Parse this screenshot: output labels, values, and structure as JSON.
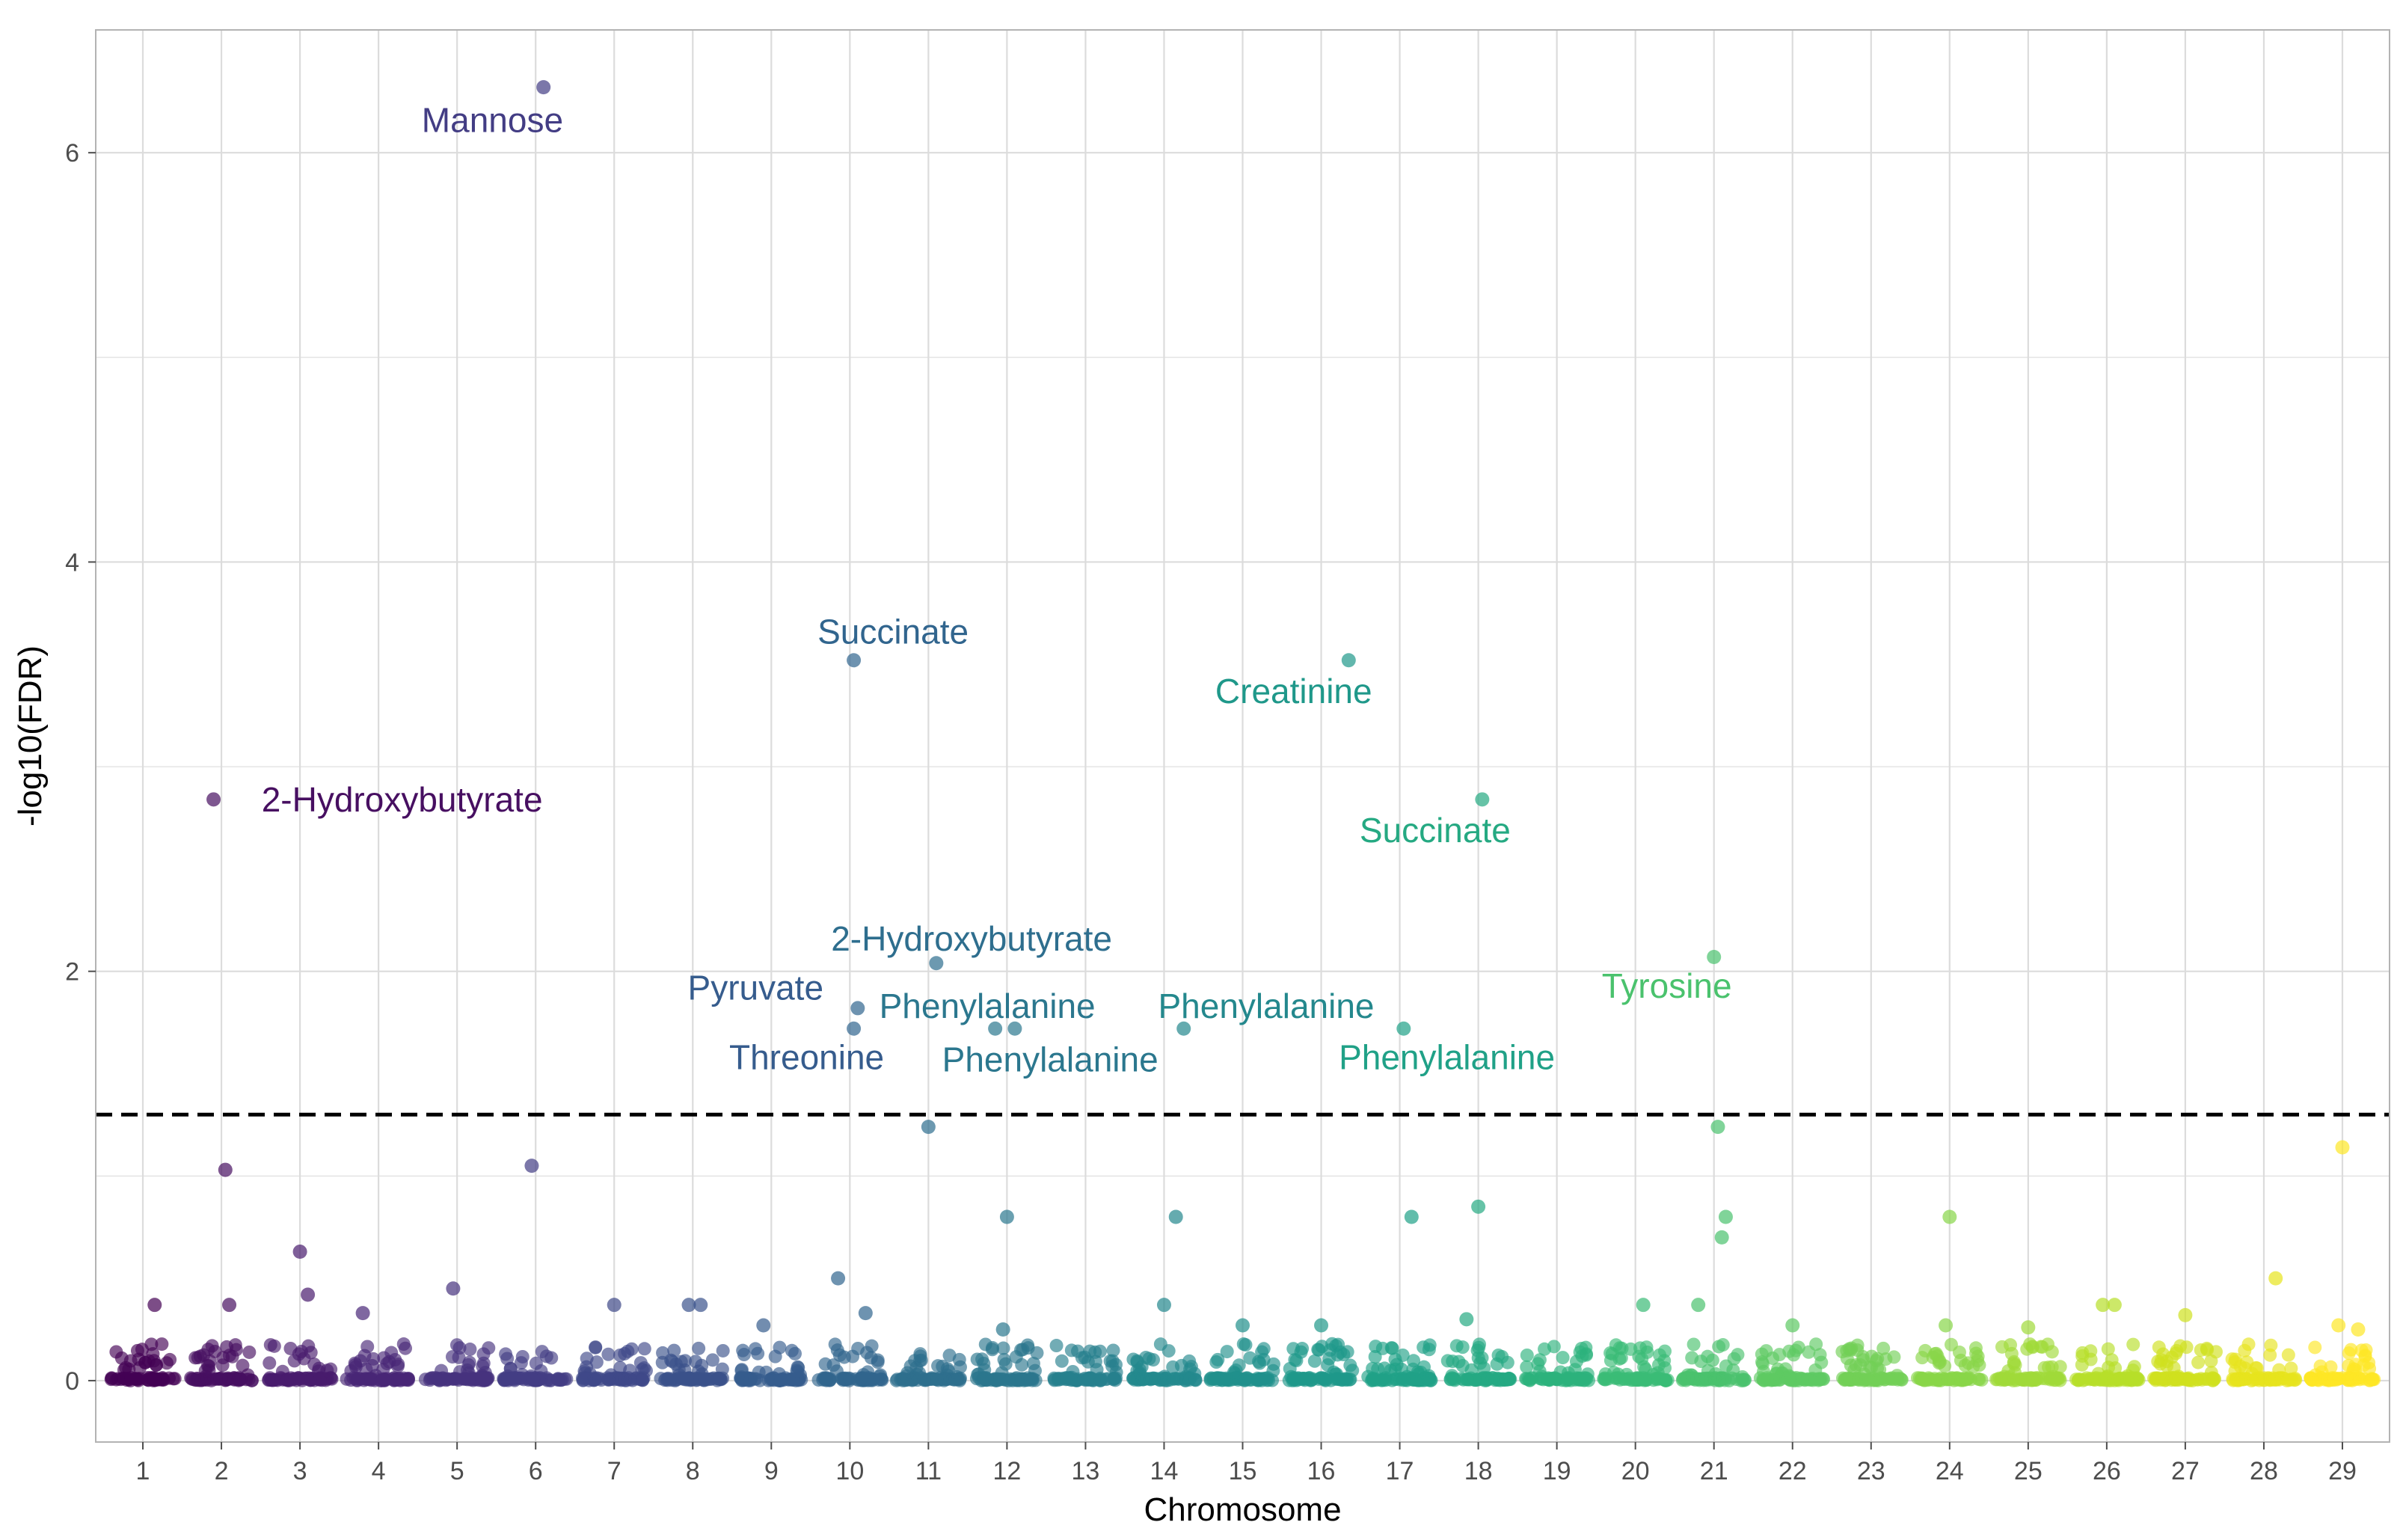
{
  "chart_data": {
    "type": "scatter",
    "subtype": "manhattan",
    "xlabel": "Chromosome",
    "ylabel": "-log10(FDR)",
    "x_ticks": [
      "1",
      "2",
      "3",
      "4",
      "5",
      "6",
      "7",
      "8",
      "9",
      "10",
      "11",
      "12",
      "13",
      "14",
      "15",
      "16",
      "17",
      "18",
      "19",
      "20",
      "21",
      "22",
      "23",
      "24",
      "25",
      "26",
      "27",
      "28",
      "29"
    ],
    "y_ticks": [
      0,
      2,
      4,
      6
    ],
    "xlim": [
      0.4,
      29.6
    ],
    "ylim": [
      -0.3,
      6.6
    ],
    "grid": true,
    "threshold": 1.3,
    "colors": {
      "threshold": "#000000",
      "grid": "#dcdcdc",
      "panel_border": "#b3b3b3",
      "chromosomes": [
        "#440154",
        "#481567",
        "#482677",
        "#453781",
        "#3f4788",
        "#39568c",
        "#32648e",
        "#2d718e",
        "#287d8e",
        "#238a8d",
        "#1f968b",
        "#20a386",
        "#29af7f",
        "#3cbc75",
        "#55c667",
        "#73d055",
        "#95d840",
        "#b8de29",
        "#dce319",
        "#fde725"
      ]
    },
    "significant_points": [
      {
        "chr": 2,
        "offset": -0.1,
        "y": 2.84
      },
      {
        "chr": 6,
        "offset": 0.1,
        "y": 6.32
      },
      {
        "chr": 10,
        "offset": 0.05,
        "y": 3.52
      },
      {
        "chr": 10,
        "offset": 0.1,
        "y": 1.82
      },
      {
        "chr": 10,
        "offset": 0.05,
        "y": 1.72
      },
      {
        "chr": 11,
        "offset": 0.1,
        "y": 2.04
      },
      {
        "chr": 12,
        "offset": -0.15,
        "y": 1.72
      },
      {
        "chr": 12,
        "offset": 0.1,
        "y": 1.72
      },
      {
        "chr": 14,
        "offset": 0.25,
        "y": 1.72
      },
      {
        "chr": 16,
        "offset": 0.35,
        "y": 3.52
      },
      {
        "chr": 17,
        "offset": 0.05,
        "y": 1.72
      },
      {
        "chr": 18,
        "offset": 0.05,
        "y": 2.84
      },
      {
        "chr": 21,
        "offset": 0.0,
        "y": 2.07
      }
    ],
    "annotations": [
      {
        "label": "Mannose",
        "chr": 6,
        "offset": -0.55,
        "y": 6.16
      },
      {
        "label": "2-Hydroxybutyrate",
        "chr": 2,
        "offset": 2.3,
        "y": 2.84
      },
      {
        "label": "Succinate",
        "chr": 10,
        "offset": 0.55,
        "y": 3.66
      },
      {
        "label": "Creatinine",
        "chr": 16,
        "offset": -0.35,
        "y": 3.37
      },
      {
        "label": "Succinate",
        "chr": 18,
        "offset": -0.55,
        "y": 2.69
      },
      {
        "label": "2-Hydroxybutyrate",
        "chr": 11,
        "offset": 0.55,
        "y": 2.16
      },
      {
        "label": "Pyruvate",
        "chr": 9,
        "offset": -0.2,
        "y": 1.92
      },
      {
        "label": "Phenylalanine",
        "chr": 12,
        "offset": -0.25,
        "y": 1.83
      },
      {
        "label": "Phenylalanine",
        "chr": 14,
        "offset": 1.3,
        "y": 1.83
      },
      {
        "label": "Threonine",
        "chr": 9,
        "offset": 0.45,
        "y": 1.58
      },
      {
        "label": "Phenylalanine",
        "chr": 12,
        "offset": 0.55,
        "y": 1.57
      },
      {
        "label": "Phenylalanine",
        "chr": 17,
        "offset": 0.6,
        "y": 1.58
      },
      {
        "label": "Tyrosine",
        "chr": 21,
        "offset": -0.6,
        "y": 1.93
      }
    ],
    "sub_threshold_points": [
      {
        "chr": 2,
        "offset": 0.05,
        "y": 1.03
      },
      {
        "chr": 6,
        "offset": -0.05,
        "y": 1.05
      },
      {
        "chr": 11,
        "offset": 0.0,
        "y": 1.24
      },
      {
        "chr": 21,
        "offset": 0.05,
        "y": 1.24
      },
      {
        "chr": 29,
        "offset": 0.0,
        "y": 1.14
      },
      {
        "chr": 3,
        "offset": 0.0,
        "y": 0.63
      },
      {
        "chr": 12,
        "offset": 0.0,
        "y": 0.8
      },
      {
        "chr": 14,
        "offset": 0.15,
        "y": 0.8
      },
      {
        "chr": 17,
        "offset": 0.15,
        "y": 0.8
      },
      {
        "chr": 18,
        "offset": 0.0,
        "y": 0.85
      },
      {
        "chr": 21,
        "offset": 0.15,
        "y": 0.8
      },
      {
        "chr": 21,
        "offset": 0.1,
        "y": 0.7
      },
      {
        "chr": 24,
        "offset": 0.0,
        "y": 0.8
      },
      {
        "chr": 28,
        "offset": 0.15,
        "y": 0.5
      },
      {
        "chr": 10,
        "offset": -0.15,
        "y": 0.5
      },
      {
        "chr": 5,
        "offset": -0.05,
        "y": 0.45
      },
      {
        "chr": 3,
        "offset": 0.1,
        "y": 0.42
      },
      {
        "chr": 1,
        "offset": 0.15,
        "y": 0.37
      },
      {
        "chr": 2,
        "offset": 0.1,
        "y": 0.37
      },
      {
        "chr": 7,
        "offset": 0.0,
        "y": 0.37
      },
      {
        "chr": 8,
        "offset": 0.1,
        "y": 0.37
      },
      {
        "chr": 8,
        "offset": -0.05,
        "y": 0.37
      },
      {
        "chr": 14,
        "offset": 0.0,
        "y": 0.37
      },
      {
        "chr": 20,
        "offset": 0.1,
        "y": 0.37
      },
      {
        "chr": 21,
        "offset": -0.2,
        "y": 0.37
      },
      {
        "chr": 26,
        "offset": -0.05,
        "y": 0.37
      },
      {
        "chr": 26,
        "offset": 0.1,
        "y": 0.37
      },
      {
        "chr": 4,
        "offset": -0.2,
        "y": 0.33
      },
      {
        "chr": 27,
        "offset": 0.0,
        "y": 0.32
      },
      {
        "chr": 18,
        "offset": -0.15,
        "y": 0.3
      },
      {
        "chr": 10,
        "offset": 0.2,
        "y": 0.33
      },
      {
        "chr": 29,
        "offset": -0.05,
        "y": 0.27
      },
      {
        "chr": 29,
        "offset": 0.2,
        "y": 0.25
      },
      {
        "chr": 24,
        "offset": -0.05,
        "y": 0.27
      },
      {
        "chr": 25,
        "offset": 0.0,
        "y": 0.26
      },
      {
        "chr": 22,
        "offset": 0.0,
        "y": 0.27
      },
      {
        "chr": 16,
        "offset": 0.0,
        "y": 0.27
      },
      {
        "chr": 15,
        "offset": 0.0,
        "y": 0.27
      },
      {
        "chr": 12,
        "offset": -0.05,
        "y": 0.25
      },
      {
        "chr": 9,
        "offset": -0.1,
        "y": 0.27
      }
    ],
    "cluster_note": "Each chromosome additionally has a dense cluster of points between 0 and ~0.2"
  }
}
